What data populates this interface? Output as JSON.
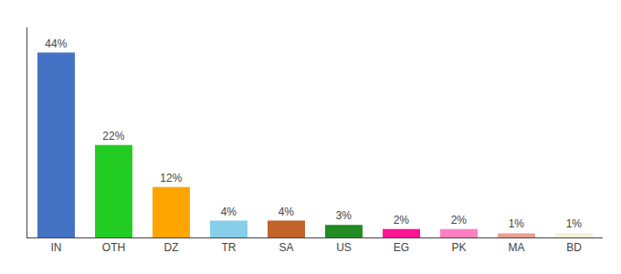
{
  "chart_data": {
    "type": "bar",
    "categories": [
      "IN",
      "OTH",
      "DZ",
      "TR",
      "SA",
      "US",
      "EG",
      "PK",
      "MA",
      "BD"
    ],
    "values": [
      44,
      22,
      12,
      4,
      4,
      3,
      2,
      2,
      1,
      1
    ],
    "value_labels": [
      "44%",
      "22%",
      "12%",
      "4%",
      "4%",
      "3%",
      "2%",
      "2%",
      "1%",
      "1%"
    ],
    "data_labels": true,
    "colors": [
      "#4472C4",
      "#22CC22",
      "#FFA500",
      "#87CEEB",
      "#C0622A",
      "#228B22",
      "#FF1493",
      "#FF80C0",
      "#E8A090",
      "#F5F0D8"
    ],
    "ylim": [
      0,
      50
    ],
    "grid": false,
    "tick_labels": "x"
  }
}
